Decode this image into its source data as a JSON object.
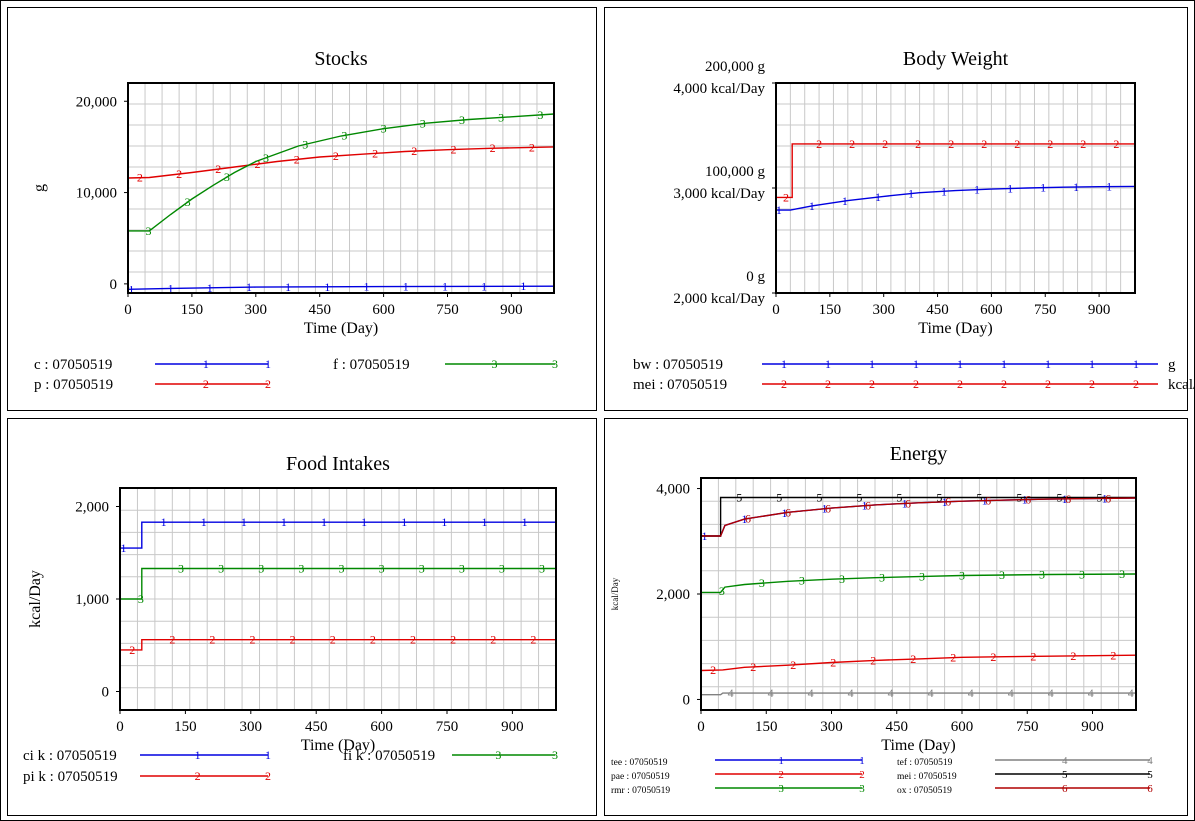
{
  "colors": {
    "blue": "#0000e0",
    "red": "#e00000",
    "green": "#008800",
    "gray": "#808080",
    "black": "#000000",
    "darkred": "#b00000",
    "grid": "#c8c8c8"
  },
  "chart_data": [
    {
      "type": "line",
      "title": "Stocks",
      "xlabel": "Time (Day)",
      "ylabel": "g",
      "xlim": [
        0,
        1000
      ],
      "ylim": [
        -1000,
        22000
      ],
      "xticks": [
        "0",
        "150",
        "300",
        "450",
        "600",
        "750",
        "900"
      ],
      "yticks": [
        {
          "value": 0,
          "labels": [
            "0"
          ]
        },
        {
          "value": 10000,
          "labels": [
            "10,000"
          ]
        },
        {
          "value": 20000,
          "labels": [
            "20,000"
          ]
        }
      ],
      "grid": true,
      "legend_columns": 2,
      "series": [
        {
          "name": "c : 07050519",
          "marker": "1",
          "color": "blue",
          "points": [
            [
              0,
              -600
            ],
            [
              100,
              -500
            ],
            [
              300,
              -350
            ],
            [
              600,
              -300
            ],
            [
              1000,
              -250
            ]
          ]
        },
        {
          "name": "p : 07050519",
          "marker": "2",
          "color": "red",
          "points": [
            [
              0,
              11600
            ],
            [
              50,
              11650
            ],
            [
              150,
              12200
            ],
            [
              250,
              12800
            ],
            [
              350,
              13400
            ],
            [
              450,
              13900
            ],
            [
              550,
              14200
            ],
            [
              650,
              14500
            ],
            [
              750,
              14700
            ],
            [
              850,
              14850
            ],
            [
              1000,
              15000
            ]
          ]
        },
        {
          "name": "f : 07050519",
          "marker": "3",
          "color": "green",
          "points": [
            [
              0,
              5800
            ],
            [
              50,
              5800
            ],
            [
              100,
              7600
            ],
            [
              150,
              9300
            ],
            [
              200,
              10800
            ],
            [
              250,
              12200
            ],
            [
              300,
              13400
            ],
            [
              400,
              15100
            ],
            [
              500,
              16200
            ],
            [
              600,
              17000
            ],
            [
              700,
              17600
            ],
            [
              800,
              18000
            ],
            [
              900,
              18300
            ],
            [
              1000,
              18600
            ]
          ]
        }
      ]
    },
    {
      "type": "line",
      "title": "Body Weight",
      "xlabel": "Time (Day)",
      "xlim": [
        0,
        1000
      ],
      "ylim": [
        0,
        200000
      ],
      "xticks": [
        "0",
        "150",
        "300",
        "450",
        "600",
        "750",
        "900"
      ],
      "yticks": [
        {
          "value": 0,
          "labels": [
            "0  g",
            "2,000  kcal/Day"
          ]
        },
        {
          "value": 100000,
          "labels": [
            "100,000  g",
            "3,000  kcal/Day"
          ]
        },
        {
          "value": 200000,
          "labels": [
            "200,000  g",
            "4,000  kcal/Day"
          ]
        }
      ],
      "grid": true,
      "legend_columns": 1,
      "series": [
        {
          "name": "bw : 07050519",
          "unit": "g",
          "marker": "1",
          "color": "blue",
          "points": [
            [
              0,
              79000
            ],
            [
              40,
              79000
            ],
            [
              100,
              83000
            ],
            [
              200,
              88000
            ],
            [
              300,
              92000
            ],
            [
              400,
              95500
            ],
            [
              500,
              97500
            ],
            [
              600,
              99000
            ],
            [
              700,
              100000
            ],
            [
              800,
              100800
            ],
            [
              900,
              101200
            ],
            [
              1000,
              101500
            ]
          ]
        },
        {
          "name": "mei : 07050519",
          "unit": "kcal/Day",
          "marker": "2",
          "color": "red",
          "points": [
            [
              0,
              91000
            ],
            [
              45,
              91000
            ],
            [
              45,
              142000
            ],
            [
              1000,
              142000
            ]
          ]
        }
      ]
    },
    {
      "type": "line",
      "title": "Food Intakes",
      "xlabel": "Time (Day)",
      "ylabel": "kcal/Day",
      "xlim": [
        0,
        1000
      ],
      "ylim": [
        -200,
        2200
      ],
      "xticks": [
        "0",
        "150",
        "300",
        "450",
        "600",
        "750",
        "900"
      ],
      "yticks": [
        {
          "value": 0,
          "labels": [
            "0"
          ]
        },
        {
          "value": 1000,
          "labels": [
            "1,000"
          ]
        },
        {
          "value": 2000,
          "labels": [
            "2,000"
          ]
        }
      ],
      "grid": true,
      "legend_columns": 2,
      "series": [
        {
          "name": "ci k : 07050519",
          "marker": "1",
          "color": "blue",
          "points": [
            [
              0,
              1550
            ],
            [
              50,
              1550
            ],
            [
              50,
              1830
            ],
            [
              1000,
              1830
            ]
          ]
        },
        {
          "name": "pi k : 07050519",
          "marker": "2",
          "color": "red",
          "points": [
            [
              0,
              450
            ],
            [
              50,
              450
            ],
            [
              50,
              560
            ],
            [
              1000,
              560
            ]
          ]
        },
        {
          "name": "fi k : 07050519",
          "marker": "3",
          "color": "green",
          "points": [
            [
              0,
              1000
            ],
            [
              50,
              1000
            ],
            [
              50,
              1330
            ],
            [
              1000,
              1330
            ]
          ]
        }
      ]
    },
    {
      "type": "line",
      "title": "Energy",
      "xlabel": "Time (Day)",
      "ylabel": "kcal/Day",
      "xlim": [
        0,
        1000
      ],
      "ylim": [
        -200,
        4200
      ],
      "xticks": [
        "0",
        "150",
        "300",
        "450",
        "600",
        "750",
        "900"
      ],
      "yticks": [
        {
          "value": 0,
          "labels": [
            "0"
          ]
        },
        {
          "value": 2000,
          "labels": [
            "2,000"
          ]
        },
        {
          "value": 4000,
          "labels": [
            "4,000"
          ]
        }
      ],
      "grid": true,
      "legend_columns": 2,
      "series": [
        {
          "name": "tee : 07050519",
          "marker": "1",
          "color": "blue",
          "points": [
            [
              0,
              3100
            ],
            [
              45,
              3100
            ],
            [
              55,
              3300
            ],
            [
              100,
              3420
            ],
            [
              200,
              3550
            ],
            [
              300,
              3630
            ],
            [
              400,
              3690
            ],
            [
              500,
              3730
            ],
            [
              600,
              3760
            ],
            [
              700,
              3780
            ],
            [
              800,
              3800
            ],
            [
              1000,
              3820
            ]
          ]
        },
        {
          "name": "pae : 07050519",
          "marker": "2",
          "color": "red",
          "points": [
            [
              0,
              550
            ],
            [
              50,
              560
            ],
            [
              100,
              610
            ],
            [
              200,
              650
            ],
            [
              300,
              700
            ],
            [
              400,
              740
            ],
            [
              500,
              770
            ],
            [
              600,
              800
            ],
            [
              700,
              810
            ],
            [
              800,
              820
            ],
            [
              1000,
              840
            ]
          ]
        },
        {
          "name": "rmr : 07050519",
          "marker": "3",
          "color": "green",
          "points": [
            [
              0,
              2030
            ],
            [
              45,
              2030
            ],
            [
              55,
              2130
            ],
            [
              100,
              2180
            ],
            [
              200,
              2240
            ],
            [
              300,
              2280
            ],
            [
              400,
              2310
            ],
            [
              500,
              2330
            ],
            [
              600,
              2350
            ],
            [
              700,
              2360
            ],
            [
              800,
              2370
            ],
            [
              1000,
              2380
            ]
          ]
        },
        {
          "name": "tef : 07050519",
          "marker": "4",
          "color": "gray",
          "points": [
            [
              0,
              90
            ],
            [
              45,
              90
            ],
            [
              50,
              120
            ],
            [
              1000,
              120
            ]
          ]
        },
        {
          "name": "mei : 07050519",
          "marker": "5",
          "color": "black",
          "points": [
            [
              0,
              3100
            ],
            [
              45,
              3100
            ],
            [
              45,
              3830
            ],
            [
              1000,
              3830
            ]
          ]
        },
        {
          "name": "ox : 07050519",
          "marker": "6",
          "color": "darkred",
          "points": [
            [
              0,
              3100
            ],
            [
              45,
              3100
            ],
            [
              55,
              3300
            ],
            [
              100,
              3420
            ],
            [
              200,
              3550
            ],
            [
              300,
              3630
            ],
            [
              400,
              3690
            ],
            [
              500,
              3730
            ],
            [
              600,
              3760
            ],
            [
              700,
              3780
            ],
            [
              800,
              3800
            ],
            [
              1000,
              3820
            ]
          ]
        }
      ]
    }
  ]
}
